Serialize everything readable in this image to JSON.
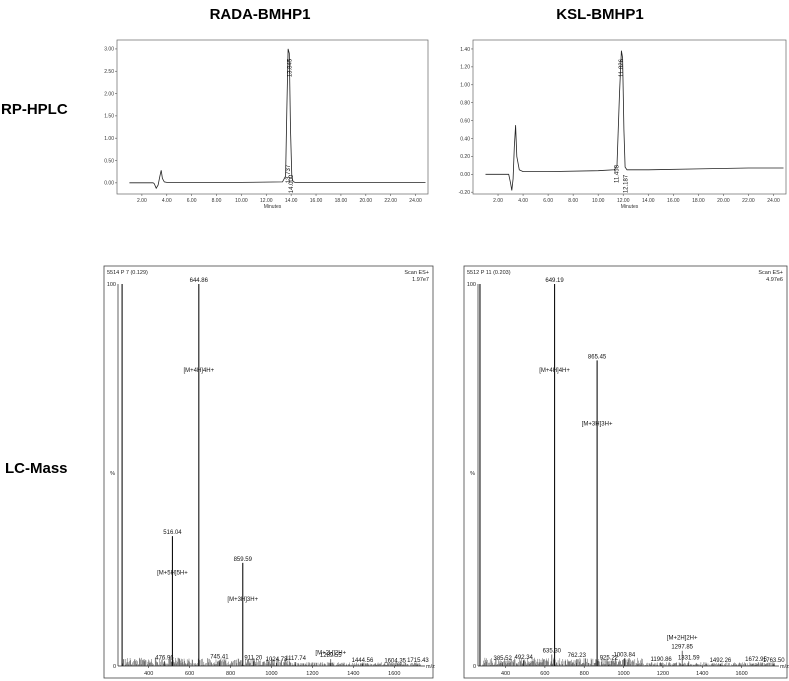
{
  "columns": [
    "RADA-BMHP1",
    "KSL-BMHP1"
  ],
  "rows": [
    "RP-HPLC",
    "LC-Mass"
  ],
  "chart_data": [
    {
      "id": "hplc-rada",
      "type": "line",
      "xlabel": "Minutes",
      "xlim": [
        0,
        25
      ],
      "ylim": [
        -0.25,
        3.2
      ],
      "xticks": [
        "2.00",
        "4.00",
        "6.00",
        "8.00",
        "10.00",
        "12.00",
        "14.00",
        "16.00",
        "18.00",
        "20.00",
        "22.00",
        "24.00"
      ],
      "xtick_values": [
        2,
        4,
        6,
        8,
        10,
        12,
        14,
        16,
        18,
        20,
        22,
        24
      ],
      "yticks": [
        "3.00",
        "2.50",
        "2.00",
        "1.50",
        "1.00",
        "0.50",
        "0.00"
      ],
      "ytick_values": [
        3.0,
        2.5,
        2.0,
        1.5,
        1.0,
        0.5,
        0.0
      ],
      "x": [
        1.0,
        2.9,
        3.0,
        3.15,
        3.3,
        3.45,
        3.55,
        3.65,
        3.8,
        4.0,
        6,
        10,
        13.3,
        13.55,
        13.65,
        13.75,
        13.85,
        13.95,
        14.05,
        14.15,
        14.3,
        16,
        20,
        24.8
      ],
      "y": [
        0,
        0,
        -0.02,
        -0.12,
        -0.05,
        0.15,
        0.28,
        0.1,
        0.02,
        0.01,
        0.01,
        0.01,
        0.02,
        0.15,
        1.6,
        3.0,
        2.9,
        1.2,
        0.15,
        0.03,
        0.01,
        0.01,
        0.01,
        0.01
      ],
      "peak_labels": [
        "13.845",
        "13.737",
        "14.000"
      ],
      "peak_label_x": [
        13.85,
        13.73,
        14.0
      ]
    },
    {
      "id": "hplc-ksl",
      "type": "line",
      "xlabel": "Minutes",
      "xlim": [
        0,
        25
      ],
      "ylim": [
        -0.22,
        1.5
      ],
      "xticks": [
        "2.00",
        "4.00",
        "6.00",
        "8.00",
        "10.00",
        "12.00",
        "14.00",
        "16.00",
        "18.00",
        "20.00",
        "22.00",
        "24.00"
      ],
      "xtick_values": [
        2,
        4,
        6,
        8,
        10,
        12,
        14,
        16,
        18,
        20,
        22,
        24
      ],
      "yticks": [
        "1.40",
        "1.20",
        "1.00",
        "0.80",
        "0.60",
        "0.40",
        "0.20",
        "0.00",
        "-0.20"
      ],
      "ytick_values": [
        1.4,
        1.2,
        1.0,
        0.8,
        0.6,
        0.4,
        0.2,
        0.0,
        -0.2
      ],
      "x": [
        1.0,
        2.85,
        3.0,
        3.1,
        3.2,
        3.3,
        3.4,
        3.5,
        3.7,
        4.0,
        6,
        10,
        11.3,
        11.5,
        11.7,
        11.85,
        11.95,
        12.05,
        12.15,
        12.3,
        14,
        18,
        22,
        24.8
      ],
      "y": [
        0,
        0,
        -0.1,
        -0.18,
        -0.05,
        0.3,
        0.55,
        0.2,
        0.05,
        0.03,
        0.03,
        0.04,
        0.05,
        0.1,
        0.9,
        1.38,
        1.3,
        0.5,
        0.08,
        0.05,
        0.05,
        0.06,
        0.07,
        0.07
      ],
      "peak_labels": [
        "11.826",
        "11.458",
        "12.187"
      ],
      "peak_label_x": [
        11.83,
        11.46,
        12.19
      ]
    },
    {
      "id": "ms-rada",
      "type": "bar",
      "header_left": "5514 P 7 (0.129)",
      "header_right": "Scan ES+",
      "header_right2": "1.97e7",
      "y_top_label": "100",
      "y_mid_label": "%",
      "y_bottom_label": "0",
      "xunit": "m/z",
      "xlim": [
        250,
        1750
      ],
      "xticks": [
        "400",
        "600",
        "800",
        "1000",
        "1200",
        "1400",
        "1600"
      ],
      "xtick_values": [
        400,
        600,
        800,
        1000,
        1200,
        1400,
        1600
      ],
      "peaks": [
        {
          "mz": 270,
          "intensity": 100
        },
        {
          "mz": 516.04,
          "intensity": 34,
          "label": "516.04"
        },
        {
          "mz": 644.86,
          "intensity": 100,
          "label": "644.86"
        },
        {
          "mz": 859.59,
          "intensity": 27,
          "label": "859.59"
        },
        {
          "mz": 476.96,
          "intensity": 1.2,
          "label": "476.96"
        },
        {
          "mz": 745.41,
          "intensity": 1.5,
          "label": "745.41"
        },
        {
          "mz": 911.2,
          "intensity": 1.2,
          "label": "911.20"
        },
        {
          "mz": 1024.73,
          "intensity": 0.8,
          "label": "1024.73"
        },
        {
          "mz": 1117.74,
          "intensity": 1.0,
          "label": "1117.74"
        },
        {
          "mz": 1289.55,
          "intensity": 1.8,
          "label": "1289.55"
        },
        {
          "mz": 1444.56,
          "intensity": 0.5,
          "label": "1444.56"
        },
        {
          "mz": 1604.35,
          "intensity": 0.4,
          "label": "1604.35"
        },
        {
          "mz": 1715.43,
          "intensity": 0.5,
          "label": "1715.43"
        }
      ],
      "annotations": [
        {
          "text": "[M+4H]4H+",
          "mz": 644.86,
          "level": 77
        },
        {
          "text": "[M+5H]5H+",
          "mz": 516.04,
          "level": 24
        },
        {
          "text": "[M+3H]3H+",
          "mz": 859.59,
          "level": 17
        },
        {
          "text": "[M+2H]2H+",
          "mz": 1289.55,
          "level": 3
        }
      ]
    },
    {
      "id": "ms-ksl",
      "type": "bar",
      "header_left": "5512 P 11 (0.203)",
      "header_right": "Scan ES+",
      "header_right2": "4.97e6",
      "y_top_label": "100",
      "y_mid_label": "%",
      "y_bottom_label": "0",
      "xunit": "m/z",
      "xlim": [
        260,
        1790
      ],
      "xticks": [
        "400",
        "600",
        "800",
        "1000",
        "1200",
        "1400",
        "1600"
      ],
      "xtick_values": [
        400,
        600,
        800,
        1000,
        1200,
        1400,
        1600
      ],
      "peaks": [
        {
          "mz": 270,
          "intensity": 100
        },
        {
          "mz": 649.19,
          "intensity": 100,
          "label": "649.19"
        },
        {
          "mz": 865.45,
          "intensity": 80,
          "label": "865.45"
        },
        {
          "mz": 385.52,
          "intensity": 1.0,
          "label": "385.52"
        },
        {
          "mz": 492.34,
          "intensity": 1.3,
          "label": "492.34"
        },
        {
          "mz": 635.3,
          "intensity": 3.0,
          "label": "635.30"
        },
        {
          "mz": 762.23,
          "intensity": 1.8,
          "label": "762.23"
        },
        {
          "mz": 925.22,
          "intensity": 1.2,
          "label": "925.22"
        },
        {
          "mz": 1003.84,
          "intensity": 2.0,
          "label": "1003.84"
        },
        {
          "mz": 1190.86,
          "intensity": 0.8,
          "label": "1190.86"
        },
        {
          "mz": 1297.85,
          "intensity": 4.0,
          "label": "1297.85"
        },
        {
          "mz": 1331.59,
          "intensity": 1.2,
          "label": "1331.59"
        },
        {
          "mz": 1492.26,
          "intensity": 0.5,
          "label": "1492.26"
        },
        {
          "mz": 1672.95,
          "intensity": 0.8,
          "label": "1672.95"
        },
        {
          "mz": 1763.5,
          "intensity": 0.5,
          "label": "1763.50"
        }
      ],
      "annotations": [
        {
          "text": "[M+4H]4H+",
          "mz": 649.19,
          "level": 77
        },
        {
          "text": "[M+3H]3H+",
          "mz": 865.45,
          "level": 63
        },
        {
          "text": "[M+2H]2H+",
          "mz": 1297.85,
          "level": 7
        }
      ]
    }
  ]
}
